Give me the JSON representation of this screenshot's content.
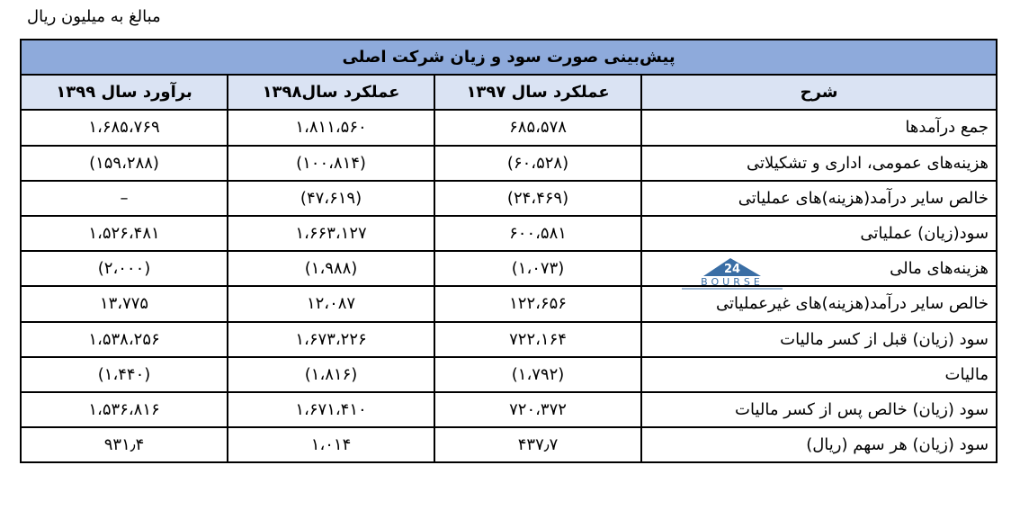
{
  "units_note": "مبالغ به میلیون ریال",
  "table": {
    "title": "پیش‌بینی صورت سود و زیان شرکت اصلی",
    "headers": [
      "شرح",
      "عملکرد سال ۱۳۹۷",
      "عملکرد سال۱۳۹۸",
      "برآورد سال ۱۳۹۹"
    ],
    "rows": [
      {
        "label": "جمع درآمدها",
        "y1397": "۶۸۵،۵۷۸",
        "y1398": "۱،۸۱۱،۵۶۰",
        "y1399": "۱،۶۸۵،۷۶۹"
      },
      {
        "label": "هزینه‌های عمومی، اداری و تشکیلاتی",
        "y1397": "(۶۰،۵۲۸)",
        "y1398": "(۱۰۰،۸۱۴)",
        "y1399": "(۱۵۹،۲۸۸)"
      },
      {
        "label": "خالص سایر درآمد(هزینه)های عملیاتی",
        "y1397": "(۲۴،۴۶۹)",
        "y1398": "(۴۷،۶۱۹)",
        "y1399": "–"
      },
      {
        "label": "سود(زیان) عملیاتی",
        "y1397": "۶۰۰،۵۸۱",
        "y1398": "۱،۶۶۳،۱۲۷",
        "y1399": "۱،۵۲۶،۴۸۱"
      },
      {
        "label": "هزینه‌های مالی",
        "y1397": "(۱،۰۷۳)",
        "y1398": "(۱،۹۸۸)",
        "y1399": "(۲،۰۰۰)"
      },
      {
        "label": "خالص سایر درآمد(هزینه)های غیرعملیاتی",
        "y1397": "۱۲۲،۶۵۶",
        "y1398": "۱۲،۰۸۷",
        "y1399": "۱۳،۷۷۵"
      },
      {
        "label": "سود (زیان) قبل از کسر مالیات",
        "y1397": "۷۲۲،۱۶۴",
        "y1398": "۱،۶۷۳،۲۲۶",
        "y1399": "۱،۵۳۸،۲۵۶"
      },
      {
        "label": "مالیات",
        "y1397": "(۱،۷۹۲)",
        "y1398": "(۱،۸۱۶)",
        "y1399": "(۱،۴۴۰)"
      },
      {
        "label": "سود (زیان) خالص پس از کسر مالیات",
        "y1397": "۷۲۰،۳۷۲",
        "y1398": "۱،۶۷۱،۴۱۰",
        "y1399": "۱،۵۳۶،۸۱۶"
      },
      {
        "label": "سود (زیان) هر سهم (ریال)",
        "y1397": "۴۳۷٫۷",
        "y1398": "۱،۰۱۴",
        "y1399": "۹۳۱٫۴"
      }
    ]
  },
  "logo": {
    "text": "BOURSE",
    "number": "24",
    "color": "#3a6ea5"
  }
}
